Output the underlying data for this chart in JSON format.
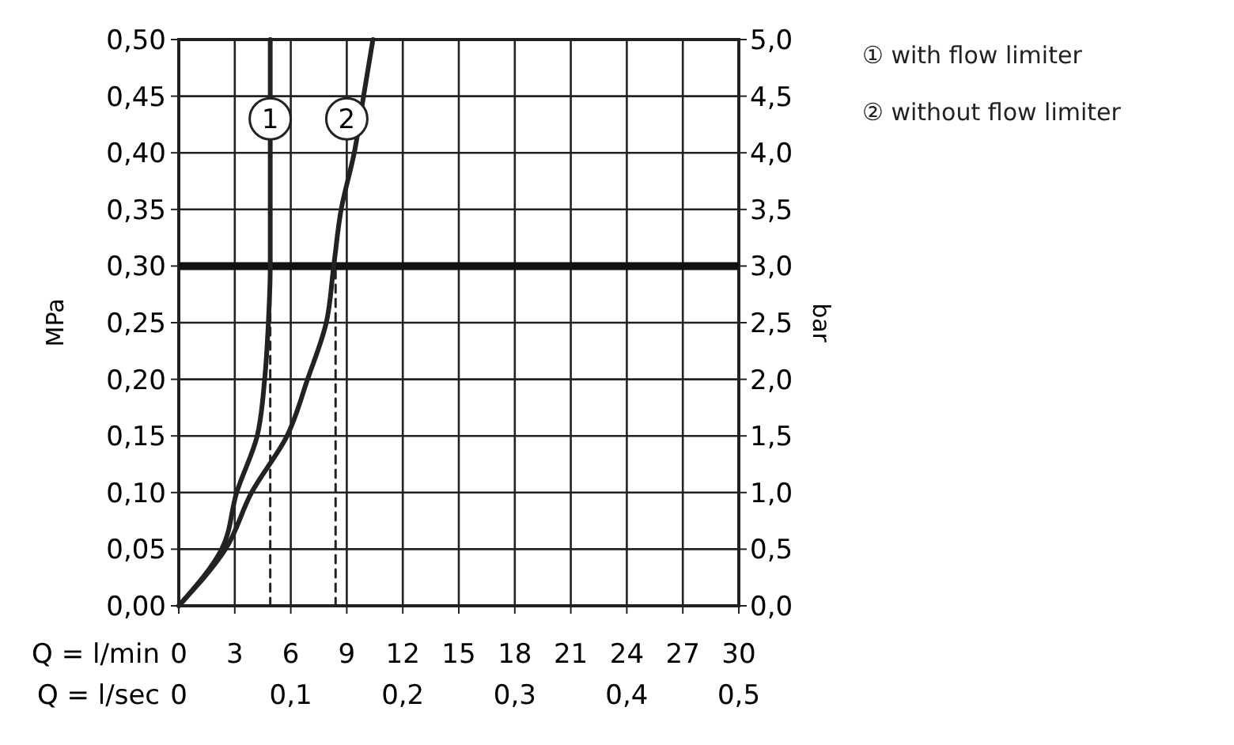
{
  "chart_data": {
    "type": "line",
    "xlabel": "Q = l/min",
    "ylabel": "MPa",
    "y2label": "bar",
    "x2label": "Q = l/sec",
    "xlim": [
      0,
      30
    ],
    "xticks": [
      0,
      3,
      6,
      9,
      12,
      15,
      18,
      21,
      24,
      27,
      30
    ],
    "x2lim": [
      0,
      0.5
    ],
    "x2ticks": [
      0,
      {
        "value": 0.1,
        "label": "0,1"
      },
      {
        "value": 0.2,
        "label": "0,2"
      },
      {
        "value": 0.3,
        "label": "0,3"
      },
      {
        "value": 0.4,
        "label": "0,4"
      },
      {
        "value": 0.5,
        "label": "0,5"
      }
    ],
    "ylim": [
      0,
      0.5
    ],
    "yticks": [
      {
        "value": 0,
        "label": "0,00"
      },
      {
        "value": 0.05,
        "label": "0,05"
      },
      {
        "value": 0.1,
        "label": "0,10"
      },
      {
        "value": 0.15,
        "label": "0,15"
      },
      {
        "value": 0.2,
        "label": "0,20"
      },
      {
        "value": 0.25,
        "label": "0,25"
      },
      {
        "value": 0.3,
        "label": "0,30"
      },
      {
        "value": 0.35,
        "label": "0,35"
      },
      {
        "value": 0.4,
        "label": "0,40"
      },
      {
        "value": 0.45,
        "label": "0,45"
      },
      {
        "value": 0.5,
        "label": "0,50"
      }
    ],
    "y2lim": [
      0,
      5
    ],
    "y2ticks": [
      {
        "value": 0,
        "label": "0,0"
      },
      {
        "value": 0.5,
        "label": "0,5"
      },
      {
        "value": 1,
        "label": "1,0"
      },
      {
        "value": 1.5,
        "label": "1,5"
      },
      {
        "value": 2,
        "label": "2,0"
      },
      {
        "value": 2.5,
        "label": "2,5"
      },
      {
        "value": 3,
        "label": "3,0"
      },
      {
        "value": 3.5,
        "label": "3,5"
      },
      {
        "value": 4,
        "label": "4,0"
      },
      {
        "value": 4.5,
        "label": "4,5"
      },
      {
        "value": 5,
        "label": "5,0"
      }
    ],
    "grid": true,
    "legend": "right",
    "series": [
      {
        "name": "① with flow limiter",
        "color": "#222222",
        "x": [
          0,
          2.3,
          3.1,
          4.2,
          4.6,
          4.8,
          4.9,
          4.9
        ],
        "values": [
          0,
          0.05,
          0.1,
          0.15,
          0.2,
          0.25,
          0.3,
          0.5
        ]
      },
      {
        "name": "② without flow limiter",
        "color": "#222222",
        "x": [
          0,
          2.5,
          3.9,
          5.8,
          6.9,
          7.9,
          8.3,
          8.7,
          9.4,
          9.9,
          10.4
        ],
        "values": [
          0,
          0.05,
          0.1,
          0.15,
          0.2,
          0.25,
          0.3,
          0.35,
          0.4,
          0.45,
          0.5
        ]
      },
      {
        "color": "#222222",
        "line_style": "dashed",
        "x": [
          4.9,
          4.9
        ],
        "values": [
          0,
          0.3
        ]
      },
      {
        "color": "#222222",
        "line_style": "dashed",
        "x": [
          8.4,
          8.4
        ],
        "values": [
          0,
          0.3
        ]
      }
    ],
    "ref_lines": [
      {
        "axis": "y",
        "value": 0.3,
        "color": "#111111"
      }
    ],
    "annotations": [
      {
        "text": "1",
        "x": 4.9,
        "y": 0.43
      },
      {
        "text": "2",
        "x": 9.0,
        "y": 0.43
      }
    ]
  }
}
